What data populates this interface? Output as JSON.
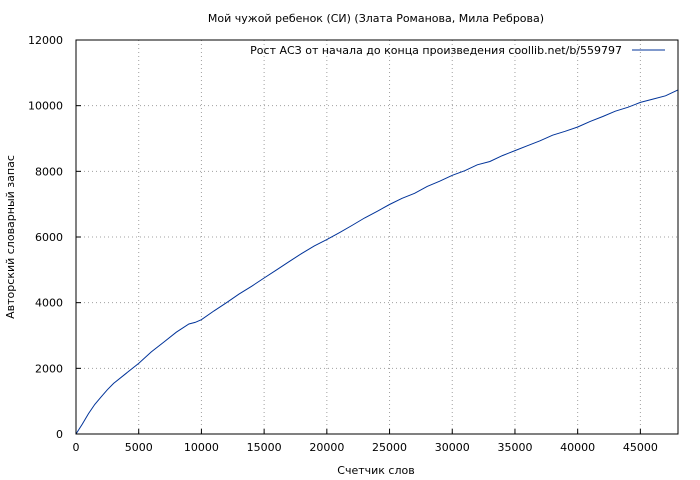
{
  "chart_data": {
    "type": "line",
    "title": "Мой чужой ребенок (СИ) (Злата Романова, Мила Реброва)",
    "xlabel": "Счетчик слов",
    "ylabel": "Авторский словарный запас",
    "xlim": [
      0,
      48000
    ],
    "ylim": [
      0,
      12000
    ],
    "xticks": [
      0,
      5000,
      10000,
      15000,
      20000,
      25000,
      30000,
      35000,
      40000,
      45000
    ],
    "yticks": [
      0,
      2000,
      4000,
      6000,
      8000,
      10000,
      12000
    ],
    "grid": true,
    "legend_position": "top-right",
    "series": [
      {
        "name": "Рост АСЗ от начала до конца произведения coollib.net/b/559797",
        "color": "#003399",
        "x": [
          0,
          500,
          1000,
          1500,
          2000,
          2500,
          3000,
          4000,
          5000,
          6000,
          7000,
          8000,
          9000,
          9500,
          10000,
          11000,
          12000,
          13000,
          14000,
          15000,
          16000,
          17000,
          18000,
          19000,
          20000,
          21000,
          22000,
          23000,
          24000,
          25000,
          26000,
          27000,
          28000,
          29000,
          30000,
          31000,
          32000,
          33000,
          34000,
          35000,
          36000,
          37000,
          38000,
          39000,
          40000,
          41000,
          42000,
          43000,
          44000,
          45000,
          46000,
          47000,
          48000
        ],
        "y": [
          0,
          300,
          620,
          900,
          1130,
          1350,
          1540,
          1850,
          2150,
          2500,
          2800,
          3100,
          3350,
          3400,
          3480,
          3750,
          4000,
          4260,
          4500,
          4750,
          5000,
          5250,
          5500,
          5730,
          5920,
          6130,
          6350,
          6580,
          6780,
          6990,
          7180,
          7330,
          7540,
          7700,
          7880,
          8020,
          8200,
          8300,
          8480,
          8630,
          8780,
          8930,
          9100,
          9220,
          9350,
          9520,
          9670,
          9830,
          9950,
          10100,
          10200,
          10300,
          10480
        ]
      }
    ]
  }
}
